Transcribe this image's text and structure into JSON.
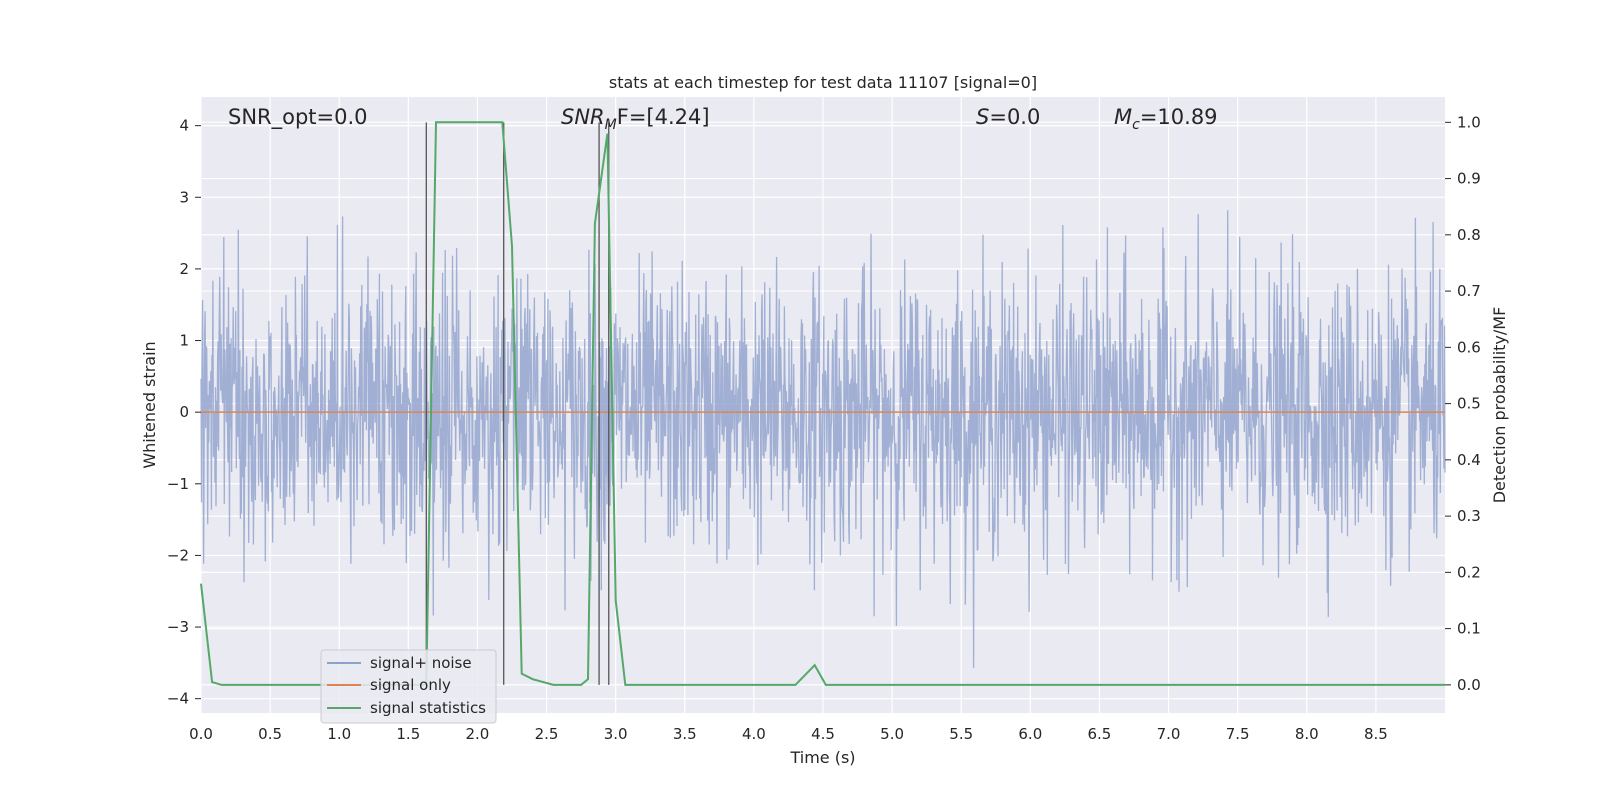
{
  "chart_data": {
    "type": "line",
    "title": "stats at each timestep for test data 11107 [signal=0]",
    "xlabel": "Time (s)",
    "ylabel": "Whitened strain",
    "ylabel_right": "Detection probability/MF",
    "xlim": [
      0.0,
      9.0
    ],
    "ylim": [
      -4.2,
      4.4
    ],
    "ylim_right": [
      -0.05,
      1.045
    ],
    "x_ticks": [
      "0.0",
      "0.5",
      "1.0",
      "1.5",
      "2.0",
      "2.5",
      "3.0",
      "3.5",
      "4.0",
      "4.5",
      "5.0",
      "5.5",
      "6.0",
      "6.5",
      "7.0",
      "7.5",
      "8.0",
      "8.5"
    ],
    "y_ticks": [
      "4",
      "3",
      "2",
      "1",
      "0",
      "−1",
      "−2",
      "−3",
      "−4"
    ],
    "y_ticks_right": [
      "1.0",
      "0.9",
      "0.8",
      "0.7",
      "0.6",
      "0.5",
      "0.4",
      "0.3",
      "0.2",
      "0.1",
      "0.0"
    ],
    "grid": true,
    "legend_position": "lower-left",
    "annotations": {
      "snr_opt": "SNR_opt=0.0",
      "snr_mf_main": "SNR",
      "snr_mf_sub": "M",
      "snr_mf_rest": "F=[4.24]",
      "s_main": "S",
      "s_rest": "=0.0",
      "mc_main": "M",
      "mc_sub": "c",
      "mc_rest": "=10.89"
    },
    "series": [
      {
        "name": "signal+ noise",
        "color": "#8da0cb",
        "description_values": "whitened noise, amplitude approx ±2 with peaks up to ±4, sampled densely from 0 to 9 s"
      },
      {
        "name": "signal only",
        "color": "#dd8452",
        "values_constant": 0.0
      },
      {
        "name": "signal statistics",
        "color": "#55a868",
        "x": [
          0.0,
          0.08,
          0.15,
          1.6,
          1.63,
          1.7,
          2.18,
          2.25,
          2.32,
          2.4,
          2.55,
          2.75,
          2.8,
          2.85,
          2.94,
          3.0,
          3.07,
          3.5,
          4.3,
          4.44,
          4.52,
          4.6,
          9.0
        ],
        "values": [
          0.18,
          0.005,
          0.0,
          0.0,
          0.0,
          1.0,
          1.0,
          0.78,
          0.02,
          0.01,
          0.0,
          0.0,
          0.01,
          0.82,
          0.98,
          0.15,
          0.0,
          0.0,
          0.0,
          0.035,
          0.0,
          0.0,
          0.0
        ]
      }
    ],
    "vertical_markers_x": [
      1.63,
      2.19,
      2.88,
      2.95
    ]
  }
}
